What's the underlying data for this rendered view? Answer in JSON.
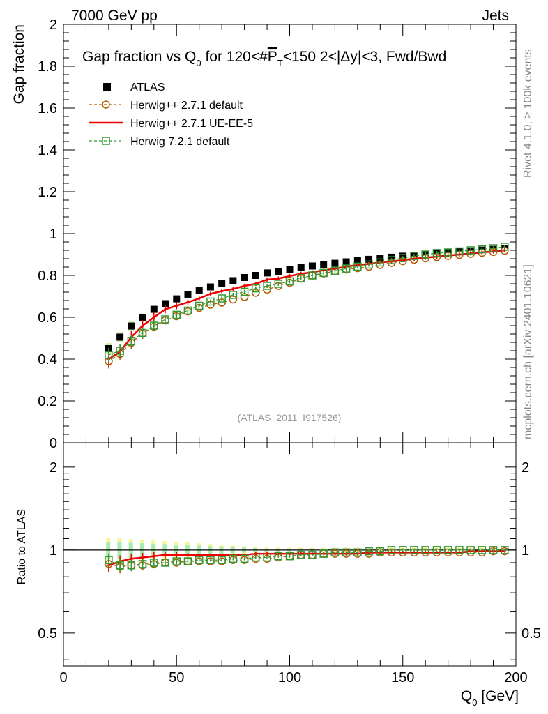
{
  "header": {
    "energy_label": "7000 GeV pp",
    "category_label": "Jets"
  },
  "side_labels": {
    "rivet": "Rivet 4.1.0, ≥ 100k events",
    "source": "mcplots.cern.ch [arXiv:2401.10621]"
  },
  "chart_data": {
    "type": "scatter",
    "title": "Gap fraction vs Q0 for 120<#PT<150  2<|Δy|<3, Fwd/Bwd",
    "reference": "(ATLAS_2011_I917526)",
    "xlabel": "Q0 [GeV]",
    "ylabel": "Gap fraction",
    "ratio_ylabel": "Ratio to ATLAS",
    "xlim": [
      0,
      200
    ],
    "ylim": [
      0,
      2
    ],
    "ratio_ylim": [
      0.38,
      2.45
    ],
    "x_ticks": [
      "0",
      "50",
      "100",
      "150",
      "200"
    ],
    "y_ticks": [
      "0",
      "0.2",
      "0.4",
      "0.6",
      "0.8",
      "1",
      "1.2",
      "1.4",
      "1.6",
      "1.8",
      "2"
    ],
    "ratio_ticks": [
      "0.5",
      "1",
      "2"
    ],
    "x": [
      20,
      25,
      30,
      35,
      40,
      45,
      50,
      55,
      60,
      65,
      70,
      75,
      80,
      85,
      90,
      95,
      100,
      105,
      110,
      115,
      120,
      125,
      130,
      135,
      140,
      145,
      150,
      155,
      160,
      165,
      170,
      175,
      180,
      185,
      190,
      195
    ],
    "series": [
      {
        "name": "ATLAS",
        "color": "#000000",
        "marker": "filled-square",
        "values": [
          0.45,
          0.505,
          0.558,
          0.6,
          0.638,
          0.665,
          0.688,
          0.708,
          0.727,
          0.745,
          0.762,
          0.775,
          0.79,
          0.8,
          0.812,
          0.82,
          0.83,
          0.837,
          0.845,
          0.852,
          0.858,
          0.865,
          0.871,
          0.877,
          0.882,
          0.887,
          0.892,
          0.896,
          0.9,
          0.905,
          0.909,
          0.913,
          0.917,
          0.921,
          0.925,
          0.93
        ]
      },
      {
        "name": "Herwig++ 2.7.1 default",
        "color": "#b35c00",
        "marker": "open-circle",
        "line": "dashed",
        "values": [
          0.39,
          0.425,
          0.478,
          0.522,
          0.555,
          0.585,
          0.605,
          0.628,
          0.645,
          0.66,
          0.67,
          0.685,
          0.697,
          0.717,
          0.732,
          0.75,
          0.765,
          0.785,
          0.8,
          0.81,
          0.82,
          0.828,
          0.835,
          0.842,
          0.85,
          0.86,
          0.868,
          0.875,
          0.882,
          0.888,
          0.893,
          0.898,
          0.903,
          0.908,
          0.912,
          0.918
        ]
      },
      {
        "name": "Herwig++ 2.7.1 UE-EE-5",
        "color": "#ee0000",
        "marker": "line-with-errors",
        "line": "solid",
        "values": [
          0.4,
          0.435,
          0.505,
          0.56,
          0.6,
          0.638,
          0.655,
          0.672,
          0.69,
          0.712,
          0.725,
          0.735,
          0.75,
          0.76,
          0.78,
          0.785,
          0.797,
          0.808,
          0.815,
          0.825,
          0.832,
          0.842,
          0.85,
          0.855,
          0.862,
          0.867,
          0.873,
          0.88,
          0.885,
          0.89,
          0.895,
          0.9,
          0.905,
          0.91,
          0.915,
          0.92
        ]
      },
      {
        "name": "Herwig 7.2.1 default",
        "color": "#339933",
        "marker": "open-square",
        "line": "dashed",
        "values": [
          0.42,
          0.44,
          0.485,
          0.525,
          0.56,
          0.59,
          0.612,
          0.632,
          0.655,
          0.675,
          0.69,
          0.707,
          0.722,
          0.738,
          0.75,
          0.76,
          0.772,
          0.787,
          0.8,
          0.812,
          0.822,
          0.833,
          0.842,
          0.852,
          0.862,
          0.873,
          0.883,
          0.893,
          0.9,
          0.907,
          0.91,
          0.915,
          0.92,
          0.925,
          0.93,
          0.937
        ]
      }
    ],
    "ratios": [
      {
        "name": "Herwig++ 2.7.1 default",
        "values": [
          0.89,
          0.87,
          0.88,
          0.88,
          0.89,
          0.9,
          0.9,
          0.91,
          0.91,
          0.91,
          0.91,
          0.92,
          0.92,
          0.93,
          0.93,
          0.94,
          0.95,
          0.96,
          0.96,
          0.97,
          0.97,
          0.97,
          0.97,
          0.97,
          0.98,
          0.98,
          0.98,
          0.98,
          0.98,
          0.98,
          0.98,
          0.98,
          0.98,
          0.98,
          0.99,
          0.99
        ]
      },
      {
        "name": "Herwig++ 2.7.1 UE-EE-5",
        "values": [
          0.88,
          0.91,
          0.93,
          0.94,
          0.95,
          0.96,
          0.96,
          0.96,
          0.96,
          0.96,
          0.96,
          0.96,
          0.96,
          0.97,
          0.97,
          0.97,
          0.97,
          0.97,
          0.97,
          0.97,
          0.97,
          0.97,
          0.97,
          0.98,
          0.98,
          0.98,
          0.98,
          0.98,
          0.98,
          0.98,
          0.98,
          0.98,
          0.99,
          0.99,
          0.99,
          0.99
        ]
      },
      {
        "name": "Herwig 7.2.1 default",
        "values": [
          0.92,
          0.88,
          0.88,
          0.89,
          0.9,
          0.9,
          0.91,
          0.91,
          0.92,
          0.92,
          0.92,
          0.93,
          0.93,
          0.94,
          0.94,
          0.95,
          0.95,
          0.96,
          0.96,
          0.97,
          0.98,
          0.98,
          0.98,
          0.99,
          0.99,
          1.0,
          1.0,
          1.0,
          1.0,
          1.0,
          1.0,
          1.0,
          1.0,
          1.0,
          1.0,
          1.0
        ]
      }
    ]
  }
}
